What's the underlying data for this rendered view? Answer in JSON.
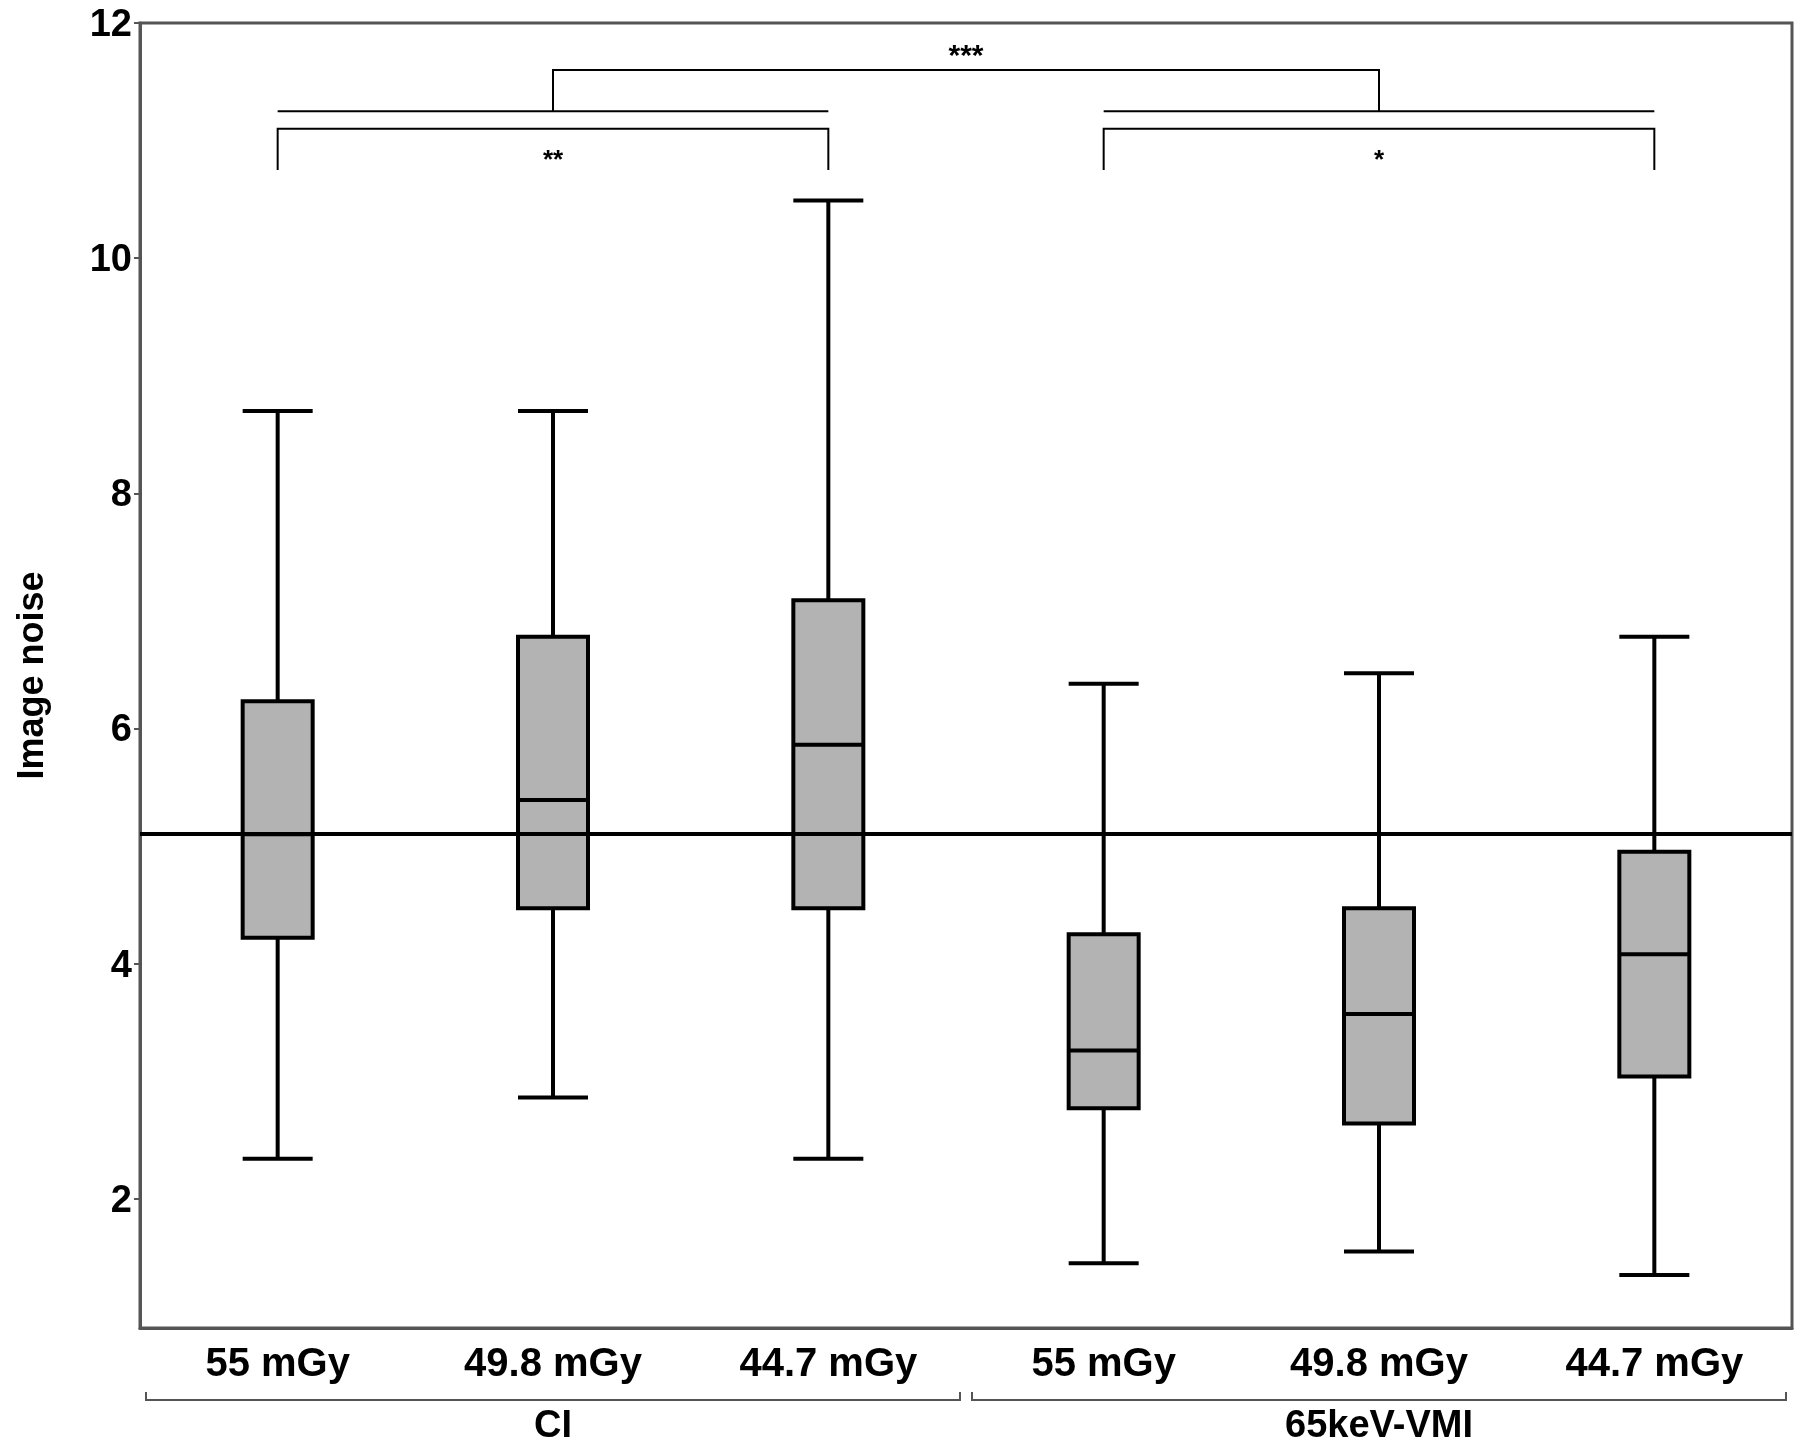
{
  "chart_data": {
    "type": "box",
    "ylabel": "Image noise",
    "categories": [
      "55 mGy",
      "49.8 mGy",
      "44.7 mGy",
      "55 mGy",
      "49.8 mGy",
      "44.7 mGy"
    ],
    "boxes": [
      {
        "low": 2.34,
        "q1": 4.22,
        "median": 5.1,
        "q3": 6.23,
        "high": 8.7
      },
      {
        "low": 2.86,
        "q1": 4.47,
        "median": 5.39,
        "q3": 6.78,
        "high": 8.7
      },
      {
        "low": 2.34,
        "q1": 4.47,
        "median": 5.86,
        "q3": 7.09,
        "high": 10.49
      },
      {
        "low": 1.45,
        "q1": 2.77,
        "median": 3.26,
        "q3": 4.25,
        "high": 6.38
      },
      {
        "low": 1.55,
        "q1": 2.64,
        "median": 3.57,
        "q3": 4.47,
        "high": 6.47
      },
      {
        "low": 1.35,
        "q1": 3.04,
        "median": 4.08,
        "q3": 4.95,
        "high": 6.78
      }
    ],
    "color": "#b3b3b3",
    "ylim": [
      0.9,
      12
    ],
    "yticks": [
      2,
      4,
      6,
      8,
      10,
      12
    ],
    "ref_lines": [
      {
        "axis": "y",
        "value": 5.1,
        "label": null,
        "color": "#000000"
      }
    ],
    "annotations": [
      "**",
      "*",
      "***",
      "CI",
      "65keV-VMI"
    ],
    "grid": false
  }
}
